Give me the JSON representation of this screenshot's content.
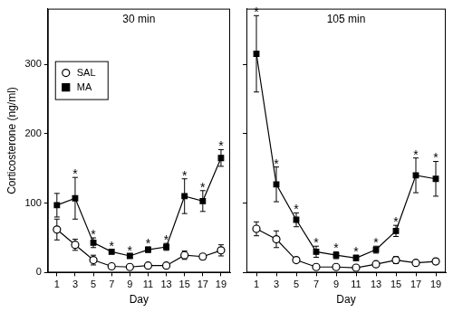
{
  "chart_data": [
    {
      "type": "line",
      "title": "30 min",
      "x_label": "Day",
      "y_label": "Corticosterone (ng/ml)",
      "x": [
        1,
        3,
        5,
        7,
        9,
        11,
        13,
        15,
        17,
        19
      ],
      "series": [
        {
          "name": "SAL",
          "color": "#000000",
          "marker": "open_circle",
          "values": [
            62,
            40,
            18,
            9,
            8,
            10,
            10,
            25,
            23,
            32
          ],
          "errors": [
            15,
            8,
            7,
            3,
            2,
            3,
            3,
            6,
            4,
            8
          ]
        },
        {
          "name": "MA",
          "color": "#000000",
          "marker": "square",
          "values": [
            97,
            107,
            43,
            30,
            24,
            33,
            37,
            110,
            103,
            165
          ],
          "errors": [
            17,
            30,
            7,
            3,
            3,
            4,
            5,
            25,
            15,
            12
          ]
        }
      ],
      "annotations": [
        {
          "text": "*",
          "x": 3
        },
        {
          "text": "*",
          "x": 5
        },
        {
          "text": "*",
          "x": 7
        },
        {
          "text": "*",
          "x": 9
        },
        {
          "text": "*",
          "x": 11
        },
        {
          "text": "*",
          "x": 13
        },
        {
          "text": "*",
          "x": 15
        },
        {
          "text": "*",
          "x": 17
        },
        {
          "text": "*",
          "x": 19
        }
      ],
      "xlim": [
        0,
        20
      ],
      "xticks": [
        1,
        3,
        5,
        7,
        9,
        11,
        13,
        15,
        17,
        19
      ],
      "ylim": [
        0,
        380
      ],
      "yticks": [
        0,
        100,
        200,
        300
      ],
      "grid": false,
      "legend": "upper left"
    },
    {
      "type": "line",
      "title": "105 min",
      "x_label": "Day",
      "x": [
        1,
        3,
        5,
        7,
        9,
        11,
        13,
        15,
        17,
        19
      ],
      "series": [
        {
          "name": "SAL",
          "color": "#000000",
          "marker": "open_circle",
          "values": [
            63,
            48,
            18,
            8,
            8,
            7,
            12,
            18,
            14,
            16
          ],
          "errors": [
            10,
            12,
            3,
            2,
            2,
            2,
            3,
            5,
            3,
            4
          ]
        },
        {
          "name": "MA",
          "color": "#000000",
          "marker": "square",
          "values": [
            315,
            127,
            76,
            30,
            25,
            21,
            33,
            60,
            140,
            135
          ],
          "errors": [
            55,
            25,
            10,
            8,
            5,
            4,
            5,
            8,
            25,
            25
          ]
        }
      ],
      "annotations": [
        {
          "text": "*",
          "x": 1
        },
        {
          "text": "*",
          "x": 3
        },
        {
          "text": "*",
          "x": 5
        },
        {
          "text": "*",
          "x": 7
        },
        {
          "text": "*",
          "x": 9
        },
        {
          "text": "*",
          "x": 11
        },
        {
          "text": "*",
          "x": 13
        },
        {
          "text": "*",
          "x": 15
        },
        {
          "text": "*",
          "x": 17
        },
        {
          "text": "*",
          "x": 19
        }
      ],
      "xlim": [
        0,
        20
      ],
      "xticks": [
        1,
        3,
        5,
        7,
        9,
        11,
        13,
        15,
        17,
        19
      ],
      "ylim": [
        0,
        380
      ],
      "yticks": [
        0,
        100,
        200,
        300
      ],
      "grid": false,
      "tick_labels": "x"
    }
  ]
}
